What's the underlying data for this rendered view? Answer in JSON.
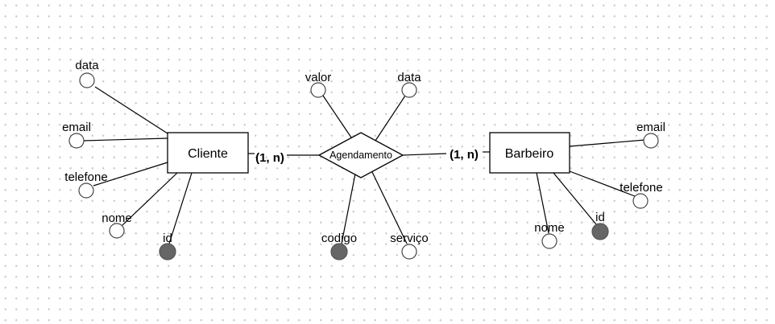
{
  "diagram": {
    "type": "entity-relationship",
    "entities": {
      "cliente": {
        "label": "Cliente",
        "attributes": {
          "data": "data",
          "email": "email",
          "telefone": "telefone",
          "nome": "nome",
          "id": "id"
        }
      },
      "barbeiro": {
        "label": "Barbeiro",
        "attributes": {
          "email": "email",
          "telefone": "telefone",
          "id": "id",
          "nome": "nome"
        }
      }
    },
    "relationship": {
      "label": "Agendamento",
      "attributes": {
        "valor": "valor",
        "data": "data",
        "codigo": "codigo",
        "servico": "serviço"
      }
    },
    "cardinality": {
      "cliente_side": "(1, n)",
      "barbeiro_side": "(1, n)"
    },
    "key_attributes": [
      "cliente.id",
      "barbeiro.id",
      "agendamento.codigo"
    ],
    "colors": {
      "key_fill": "#666666",
      "line": "#000000",
      "background_dots": "#c9c9c9"
    }
  }
}
